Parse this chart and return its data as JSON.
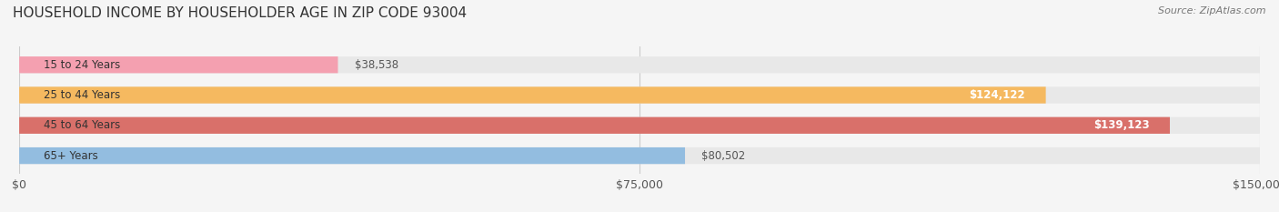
{
  "title": "HOUSEHOLD INCOME BY HOUSEHOLDER AGE IN ZIP CODE 93004",
  "source": "Source: ZipAtlas.com",
  "categories": [
    "15 to 24 Years",
    "25 to 44 Years",
    "45 to 64 Years",
    "65+ Years"
  ],
  "values": [
    38538,
    124122,
    139123,
    80502
  ],
  "bar_colors": [
    "#f4a0b0",
    "#f5b960",
    "#d9706a",
    "#93bde0"
  ],
  "bar_bg_color": "#e8e8e8",
  "label_colors": [
    "#555555",
    "#ffffff",
    "#ffffff",
    "#555555"
  ],
  "xlim": [
    0,
    150000
  ],
  "xticks": [
    0,
    75000,
    150000
  ],
  "xtick_labels": [
    "$0",
    "$75,000",
    "$150,000"
  ],
  "background_color": "#f5f5f5",
  "bar_height": 0.55,
  "title_fontsize": 11,
  "source_fontsize": 8,
  "label_fontsize": 8.5,
  "tick_fontsize": 9,
  "category_fontsize": 8.5
}
